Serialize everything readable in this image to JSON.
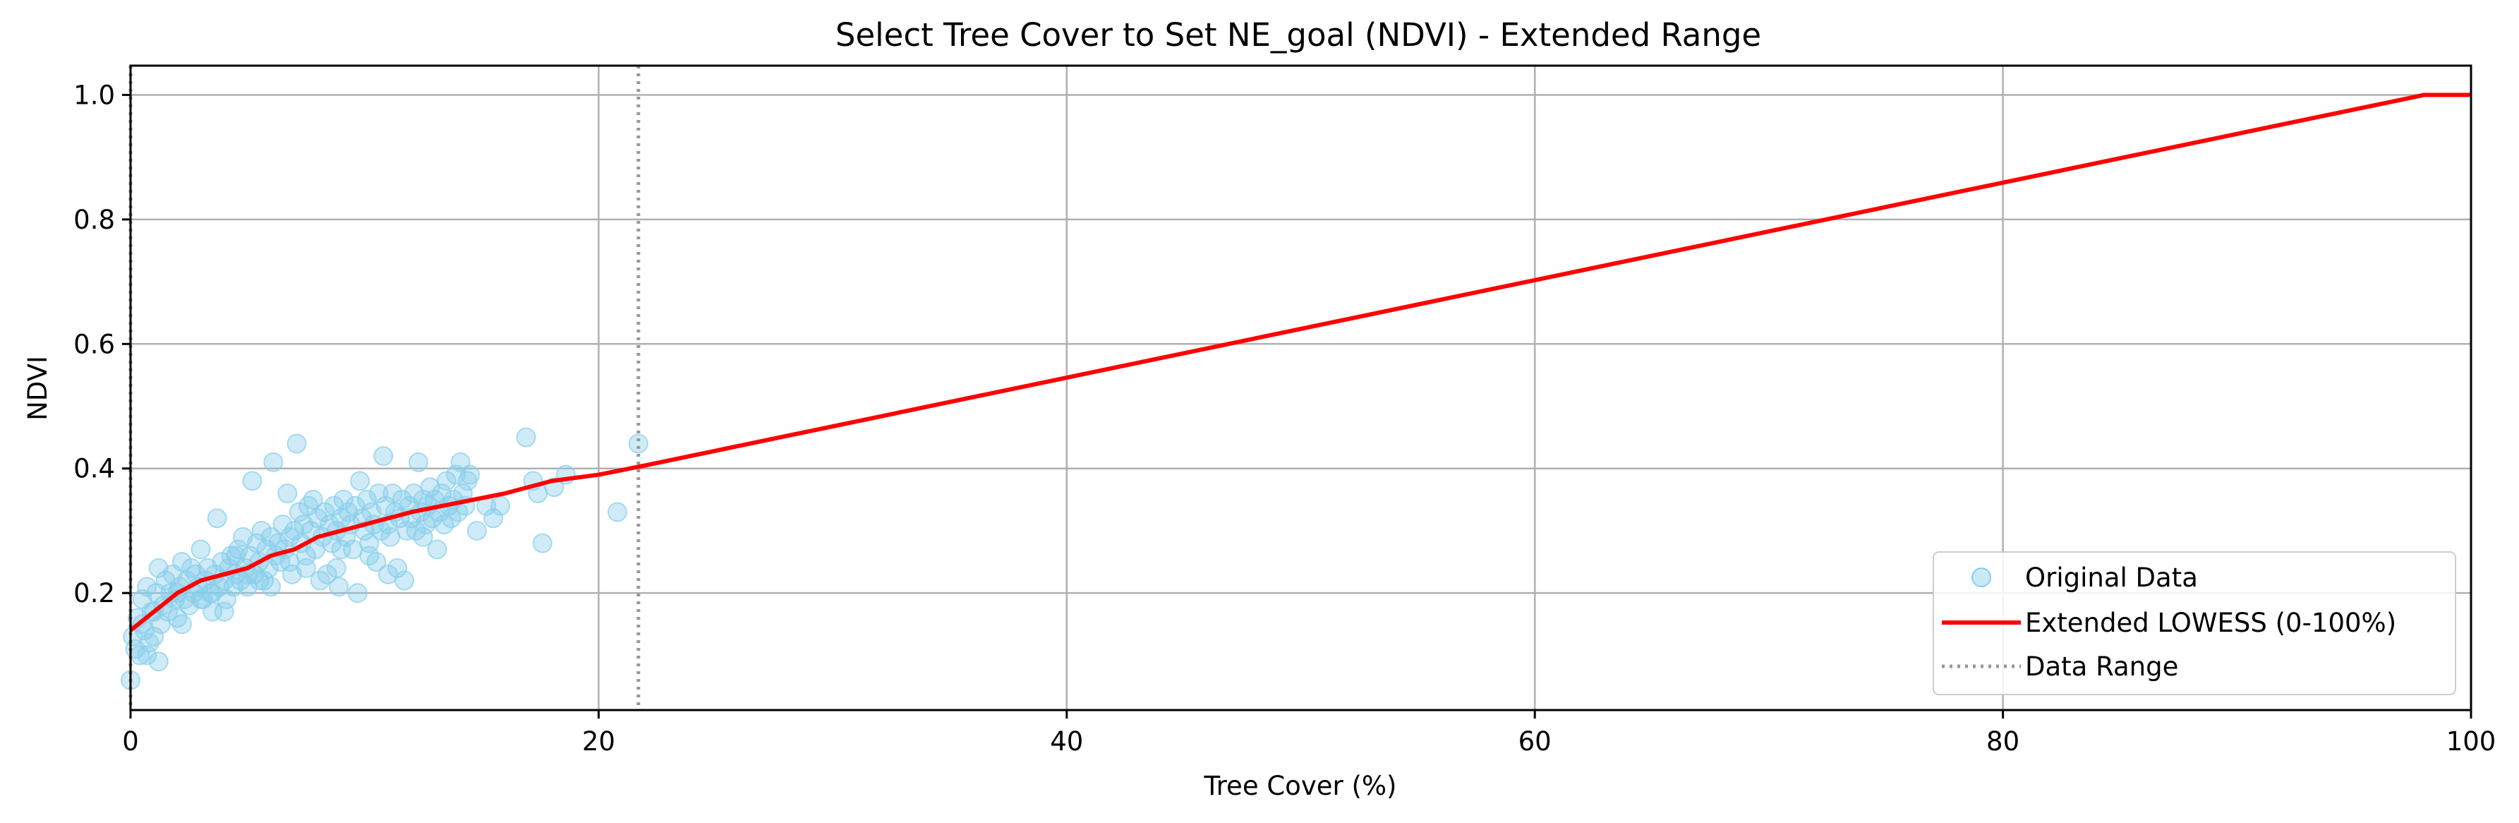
{
  "chart_data": {
    "type": "scatter",
    "title": "Select Tree Cover to Set NE_goal (NDVI) - Extended Range",
    "xlabel": "Tree Cover (%)",
    "ylabel": "NDVI",
    "xlim": [
      0,
      100
    ],
    "ylim": [
      0.012,
      1.047
    ],
    "x_ticks": [
      0,
      20,
      40,
      60,
      80,
      100
    ],
    "x_tick_labels": [
      "0",
      "20",
      "40",
      "60",
      "80",
      "100"
    ],
    "y_ticks": [
      0.2,
      0.4,
      0.6,
      0.8,
      1.0
    ],
    "y_tick_labels": [
      "0.2",
      "0.4",
      "0.6",
      "0.8",
      "1.0"
    ],
    "grid": true,
    "legend_position": "lower-right",
    "series": [
      {
        "name": "Original Data",
        "kind": "scatter",
        "color": "#87CEEB",
        "points": [
          [
            0.0,
            0.06
          ],
          [
            0.1,
            0.13
          ],
          [
            0.2,
            0.11
          ],
          [
            0.3,
            0.16
          ],
          [
            0.4,
            0.1
          ],
          [
            0.5,
            0.19
          ],
          [
            0.6,
            0.14
          ],
          [
            0.7,
            0.21
          ],
          [
            0.8,
            0.12
          ],
          [
            0.9,
            0.17
          ],
          [
            1.0,
            0.13
          ],
          [
            1.1,
            0.2
          ],
          [
            1.2,
            0.24
          ],
          [
            1.3,
            0.15
          ],
          [
            1.4,
            0.18
          ],
          [
            1.5,
            0.22
          ],
          [
            1.6,
            0.17
          ],
          [
            1.7,
            0.2
          ],
          [
            1.8,
            0.23
          ],
          [
            1.9,
            0.19
          ],
          [
            2.0,
            0.16
          ],
          [
            2.1,
            0.21
          ],
          [
            2.2,
            0.25
          ],
          [
            2.3,
            0.19
          ],
          [
            2.4,
            0.22
          ],
          [
            2.5,
            0.18
          ],
          [
            2.6,
            0.24
          ],
          [
            2.7,
            0.2
          ],
          [
            2.8,
            0.23
          ],
          [
            2.9,
            0.21
          ],
          [
            3.0,
            0.27
          ],
          [
            3.1,
            0.19
          ],
          [
            3.2,
            0.22
          ],
          [
            3.3,
            0.24
          ],
          [
            3.4,
            0.2
          ],
          [
            3.5,
            0.17
          ],
          [
            3.6,
            0.23
          ],
          [
            3.7,
            0.32
          ],
          [
            3.8,
            0.21
          ],
          [
            3.9,
            0.25
          ],
          [
            4.0,
            0.22
          ],
          [
            4.1,
            0.19
          ],
          [
            4.2,
            0.24
          ],
          [
            4.3,
            0.26
          ],
          [
            4.4,
            0.21
          ],
          [
            4.5,
            0.23
          ],
          [
            4.6,
            0.27
          ],
          [
            4.7,
            0.22
          ],
          [
            4.8,
            0.29
          ],
          [
            4.9,
            0.24
          ],
          [
            5.0,
            0.21
          ],
          [
            5.1,
            0.26
          ],
          [
            5.2,
            0.38
          ],
          [
            5.3,
            0.23
          ],
          [
            5.4,
            0.28
          ],
          [
            5.5,
            0.25
          ],
          [
            5.6,
            0.3
          ],
          [
            5.7,
            0.22
          ],
          [
            5.8,
            0.27
          ],
          [
            5.9,
            0.24
          ],
          [
            6.0,
            0.29
          ],
          [
            6.1,
            0.41
          ],
          [
            6.2,
            0.26
          ],
          [
            6.3,
            0.28
          ],
          [
            6.4,
            0.25
          ],
          [
            6.5,
            0.31
          ],
          [
            6.6,
            0.27
          ],
          [
            6.7,
            0.36
          ],
          [
            6.8,
            0.29
          ],
          [
            6.9,
            0.23
          ],
          [
            7.0,
            0.3
          ],
          [
            7.1,
            0.44
          ],
          [
            7.2,
            0.33
          ],
          [
            7.3,
            0.28
          ],
          [
            7.4,
            0.31
          ],
          [
            7.5,
            0.26
          ],
          [
            7.6,
            0.34
          ],
          [
            7.7,
            0.3
          ],
          [
            7.8,
            0.35
          ],
          [
            7.9,
            0.27
          ],
          [
            8.0,
            0.32
          ],
          [
            8.1,
            0.22
          ],
          [
            8.2,
            0.29
          ],
          [
            8.3,
            0.33
          ],
          [
            8.4,
            0.23
          ],
          [
            8.5,
            0.31
          ],
          [
            8.6,
            0.28
          ],
          [
            8.7,
            0.34
          ],
          [
            8.8,
            0.3
          ],
          [
            8.9,
            0.21
          ],
          [
            9.0,
            0.32
          ],
          [
            9.1,
            0.35
          ],
          [
            9.2,
            0.29
          ],
          [
            9.3,
            0.33
          ],
          [
            9.4,
            0.31
          ],
          [
            9.5,
            0.27
          ],
          [
            9.6,
            0.34
          ],
          [
            9.7,
            0.2
          ],
          [
            9.8,
            0.38
          ],
          [
            9.9,
            0.32
          ],
          [
            10.0,
            0.3
          ],
          [
            10.1,
            0.35
          ],
          [
            10.2,
            0.28
          ],
          [
            10.3,
            0.33
          ],
          [
            10.4,
            0.31
          ],
          [
            10.5,
            0.25
          ],
          [
            10.6,
            0.36
          ],
          [
            10.7,
            0.3
          ],
          [
            10.8,
            0.42
          ],
          [
            10.9,
            0.34
          ],
          [
            11.0,
            0.31
          ],
          [
            11.1,
            0.29
          ],
          [
            11.2,
            0.36
          ],
          [
            11.3,
            0.33
          ],
          [
            11.4,
            0.24
          ],
          [
            11.5,
            0.32
          ],
          [
            11.6,
            0.35
          ],
          [
            11.7,
            0.22
          ],
          [
            11.8,
            0.3
          ],
          [
            11.9,
            0.34
          ],
          [
            12.0,
            0.32
          ],
          [
            12.1,
            0.36
          ],
          [
            12.2,
            0.3
          ],
          [
            12.3,
            0.41
          ],
          [
            12.4,
            0.33
          ],
          [
            12.5,
            0.35
          ],
          [
            12.6,
            0.31
          ],
          [
            12.7,
            0.34
          ],
          [
            12.8,
            0.37
          ],
          [
            12.9,
            0.32
          ],
          [
            13.0,
            0.35
          ],
          [
            13.1,
            0.27
          ],
          [
            13.2,
            0.33
          ],
          [
            13.3,
            0.36
          ],
          [
            13.4,
            0.31
          ],
          [
            13.5,
            0.38
          ],
          [
            13.6,
            0.34
          ],
          [
            13.7,
            0.32
          ],
          [
            13.8,
            0.35
          ],
          [
            13.9,
            0.39
          ],
          [
            14.0,
            0.33
          ],
          [
            14.1,
            0.41
          ],
          [
            14.2,
            0.36
          ],
          [
            14.3,
            0.34
          ],
          [
            14.4,
            0.38
          ],
          [
            14.5,
            0.39
          ],
          [
            14.8,
            0.3
          ],
          [
            15.2,
            0.34
          ],
          [
            15.5,
            0.32
          ],
          [
            15.8,
            0.34
          ],
          [
            16.9,
            0.45
          ],
          [
            17.2,
            0.38
          ],
          [
            17.4,
            0.36
          ],
          [
            17.6,
            0.28
          ],
          [
            18.1,
            0.37
          ],
          [
            18.6,
            0.39
          ],
          [
            20.8,
            0.33
          ],
          [
            21.7,
            0.44
          ],
          [
            1.2,
            0.09
          ],
          [
            0.7,
            0.1
          ],
          [
            2.2,
            0.15
          ],
          [
            3.5,
            0.2
          ],
          [
            4.0,
            0.17
          ],
          [
            5.5,
            0.22
          ],
          [
            6.0,
            0.21
          ],
          [
            7.5,
            0.24
          ],
          [
            8.8,
            0.24
          ],
          [
            10.2,
            0.26
          ],
          [
            11.0,
            0.23
          ],
          [
            12.5,
            0.29
          ],
          [
            9.0,
            0.27
          ],
          [
            6.8,
            0.25
          ],
          [
            5.0,
            0.23
          ],
          [
            3.0,
            0.19
          ],
          [
            2.0,
            0.2
          ],
          [
            1.0,
            0.17
          ],
          [
            0.5,
            0.15
          ],
          [
            4.5,
            0.26
          ]
        ]
      },
      {
        "name": "Extended LOWESS (0-100%)",
        "kind": "line",
        "color": "#FF0000",
        "points": [
          [
            0,
            0.14
          ],
          [
            1,
            0.17
          ],
          [
            2,
            0.2
          ],
          [
            3,
            0.22
          ],
          [
            4,
            0.23
          ],
          [
            5,
            0.24
          ],
          [
            6,
            0.26
          ],
          [
            7,
            0.27
          ],
          [
            8,
            0.29
          ],
          [
            9,
            0.3
          ],
          [
            10,
            0.31
          ],
          [
            12,
            0.33
          ],
          [
            14,
            0.345
          ],
          [
            16,
            0.36
          ],
          [
            18,
            0.38
          ],
          [
            20,
            0.39
          ],
          [
            22,
            0.405
          ],
          [
            98,
            1.0
          ],
          [
            100,
            1.0
          ]
        ]
      },
      {
        "name": "Data Range",
        "kind": "vline",
        "color": "#999999",
        "x_values": [
          0,
          21.7
        ]
      }
    ]
  }
}
